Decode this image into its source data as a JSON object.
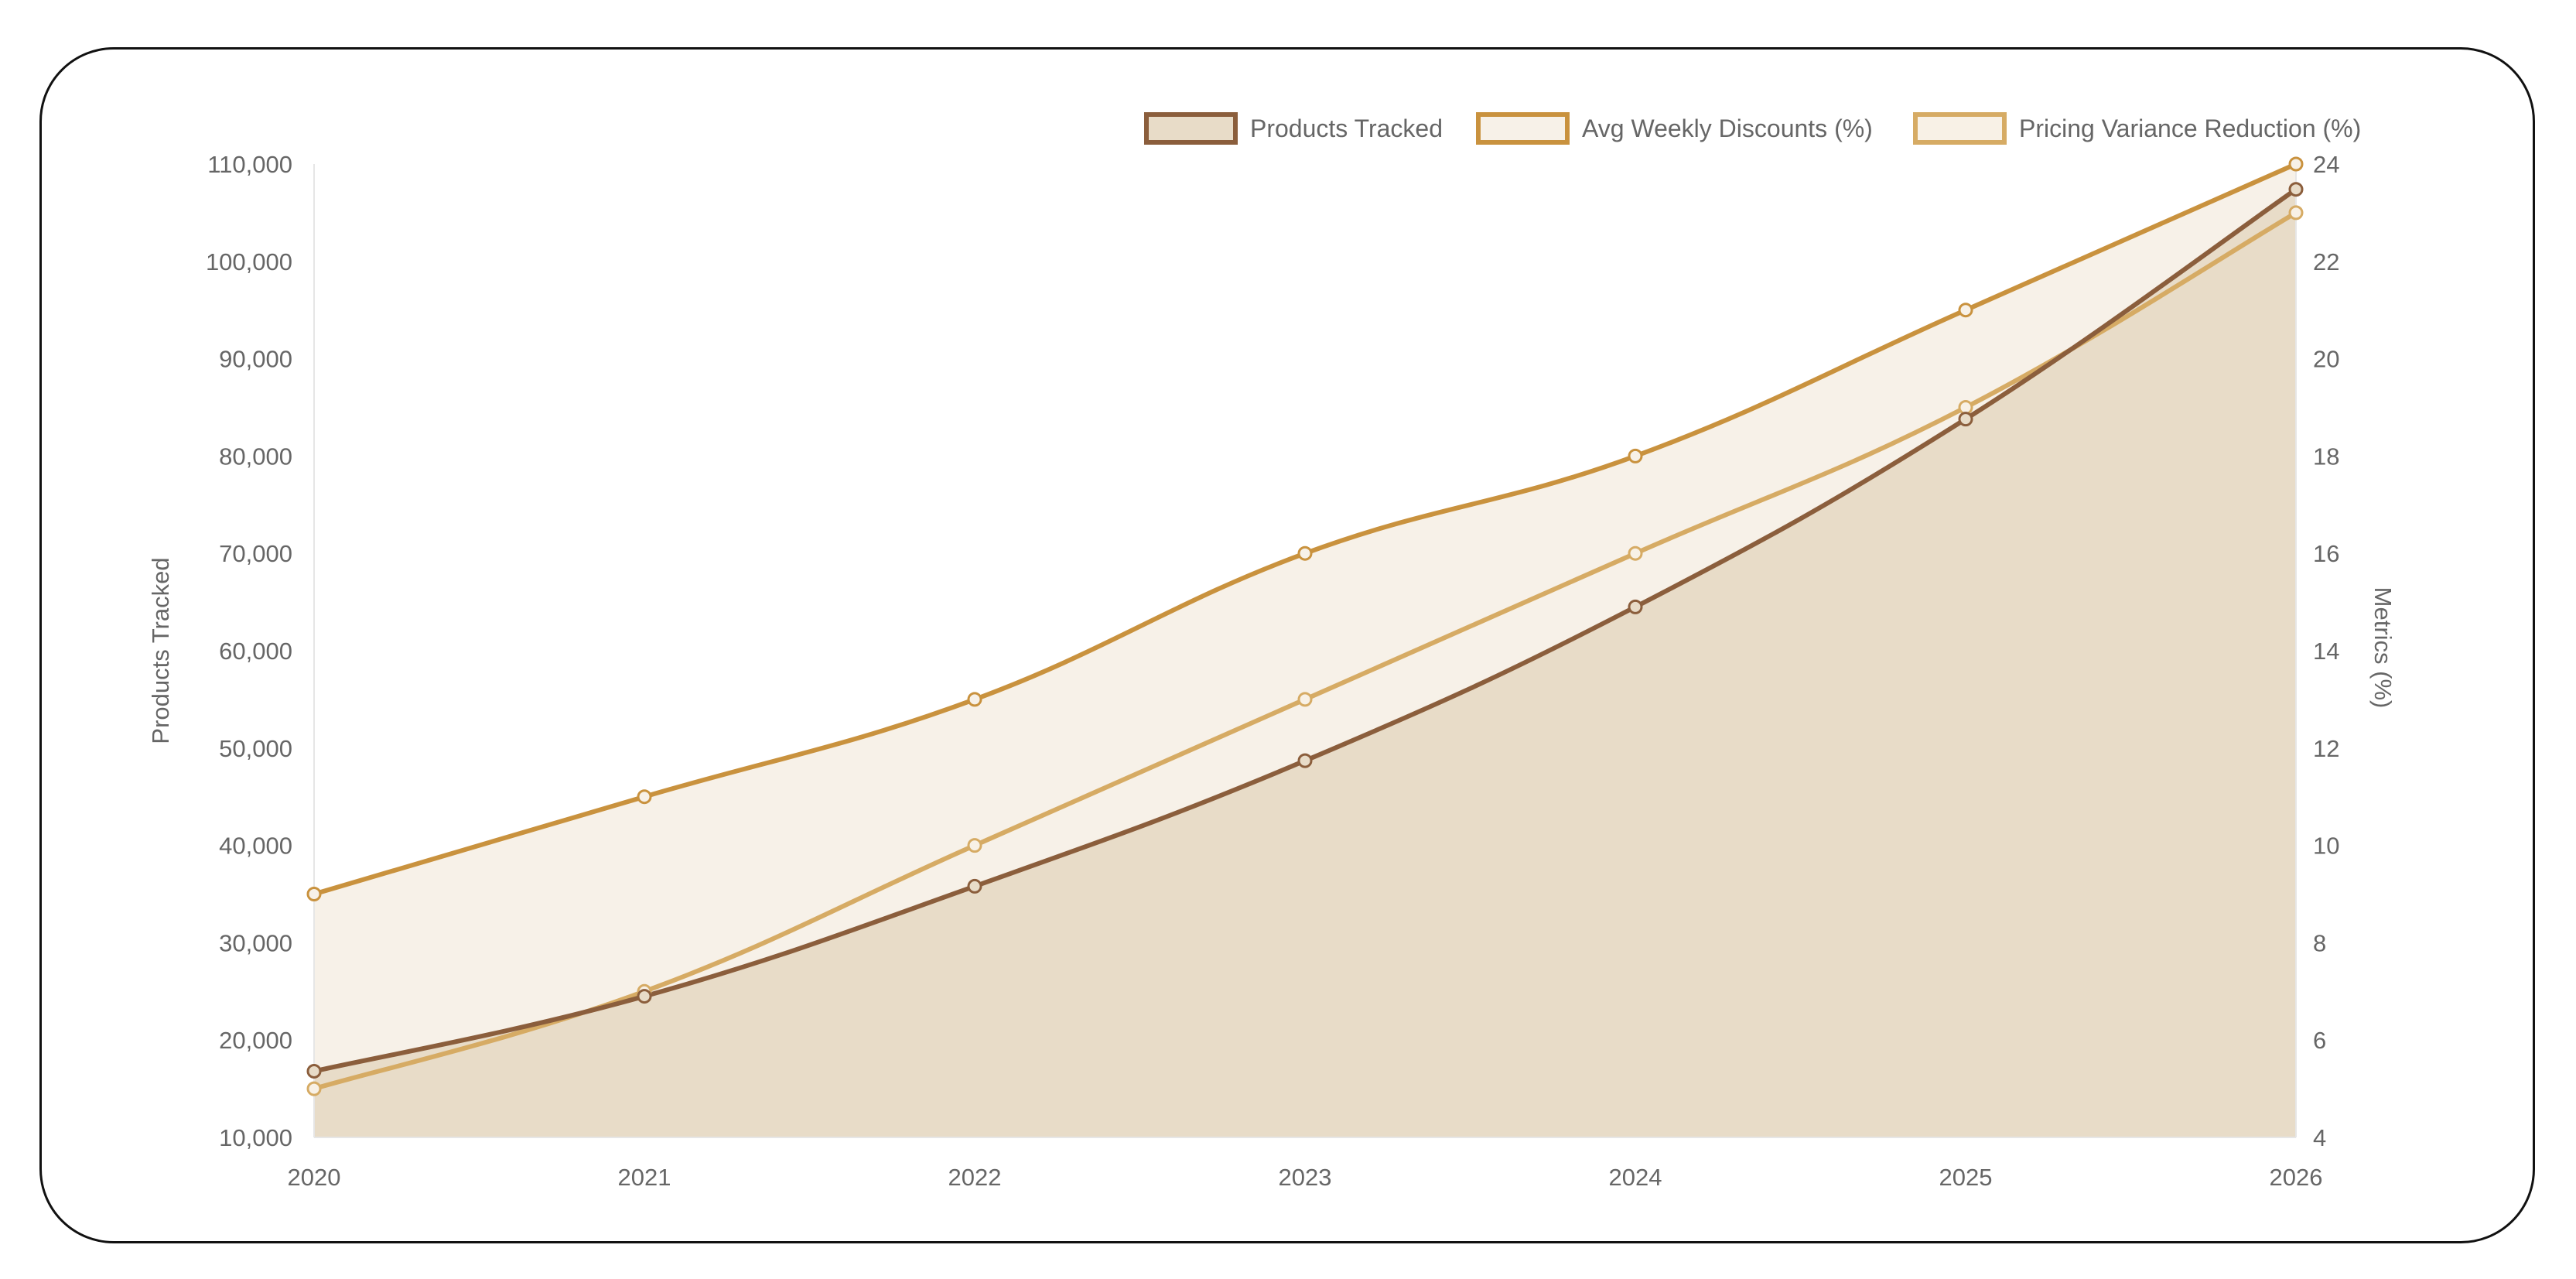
{
  "chart_data": {
    "type": "line",
    "categories": [
      "2020",
      "2021",
      "2022",
      "2023",
      "2024",
      "2025",
      "2026"
    ],
    "series": [
      {
        "name": "Products Tracked",
        "axis": "left",
        "values": [
          16800,
          24500,
          35800,
          48700,
          64500,
          83800,
          107400
        ],
        "color": "#8b5e3c",
        "fill": "#e8dcc8",
        "filled": true
      },
      {
        "name": "Avg Weekly Discounts (%)",
        "axis": "right",
        "values": [
          9,
          11,
          13,
          16,
          18,
          21,
          24
        ],
        "color": "#c9923e",
        "fill": "#f7f1e8",
        "filled": true
      },
      {
        "name": "Pricing Variance Reduction (%)",
        "axis": "right",
        "values": [
          5,
          7,
          10,
          13,
          16,
          19,
          23
        ],
        "color": "#d6ab64",
        "fill": "#f8f1e6",
        "filled": false
      }
    ],
    "ylabel": "Products Tracked",
    "y2label": "Metrics (%)",
    "ylim": [
      10000,
      110000
    ],
    "y2lim": [
      4,
      24
    ],
    "yticks": [
      "10,000",
      "20,000",
      "30,000",
      "40,000",
      "50,000",
      "60,000",
      "70,000",
      "80,000",
      "90,000",
      "100,000",
      "110,000"
    ],
    "y2ticks": [
      "4",
      "6",
      "8",
      "10",
      "12",
      "14",
      "16",
      "18",
      "20",
      "22",
      "24"
    ],
    "legend_position": "top-right",
    "grid": false
  }
}
